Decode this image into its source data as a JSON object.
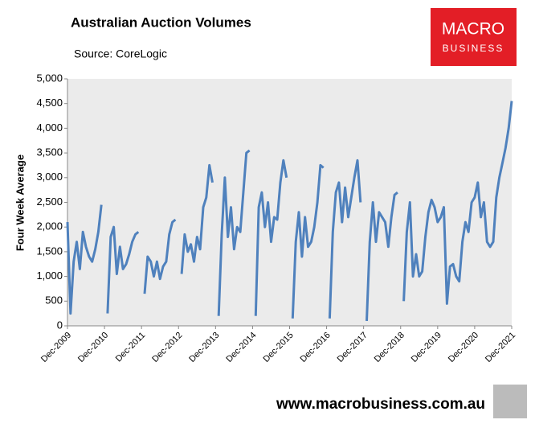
{
  "chart_data": {
    "type": "line",
    "title": "Australian Auction Volumes",
    "subtitle": "Source: CoreLogic",
    "y_label": "Four Week Average",
    "categories": [
      "Dec-2009",
      null,
      null,
      null,
      null,
      null,
      null,
      null,
      null,
      null,
      null,
      null,
      "Dec-2010",
      null,
      null,
      null,
      null,
      null,
      null,
      null,
      null,
      null,
      null,
      null,
      "Dec-2011",
      null,
      null,
      null,
      null,
      null,
      null,
      null,
      null,
      null,
      null,
      null,
      "Dec-2012",
      null,
      null,
      null,
      null,
      null,
      null,
      null,
      null,
      null,
      null,
      null,
      "Dec-2013",
      null,
      null,
      null,
      null,
      null,
      null,
      null,
      null,
      null,
      null,
      null,
      "Dec-2014",
      null,
      null,
      null,
      null,
      null,
      null,
      null,
      null,
      null,
      null,
      null,
      "Dec-2015",
      null,
      null,
      null,
      null,
      null,
      null,
      null,
      null,
      null,
      null,
      null,
      "Dec-2016",
      null,
      null,
      null,
      null,
      null,
      null,
      null,
      null,
      null,
      null,
      null,
      "Dec-2017",
      null,
      null,
      null,
      null,
      null,
      null,
      null,
      null,
      null,
      null,
      null,
      "Dec-2018",
      null,
      null,
      null,
      null,
      null,
      null,
      null,
      null,
      null,
      null,
      null,
      "Dec-2019",
      null,
      null,
      null,
      null,
      null,
      null,
      null,
      null,
      null,
      null,
      null,
      "Dec-2020",
      null,
      null,
      null,
      null,
      null,
      null,
      null,
      null,
      null,
      null,
      null,
      "Dec-2021"
    ],
    "series": [
      {
        "color": "#4f81bd",
        "values": [
          2100,
          250,
          1300,
          1700,
          1150,
          1900,
          1600,
          1400,
          1300,
          1550,
          1900,
          2450,
          null,
          250,
          1800,
          2000,
          1050,
          1600,
          1150,
          1250,
          1450,
          1700,
          1850,
          1900,
          null,
          650,
          1400,
          1300,
          1000,
          1300,
          950,
          1200,
          1300,
          1850,
          2100,
          2150,
          null,
          1050,
          1850,
          1500,
          1650,
          1300,
          1800,
          1550,
          2400,
          2600,
          3250,
          2900,
          null,
          200,
          1850,
          3000,
          1800,
          2400,
          1550,
          2000,
          1900,
          2700,
          3500,
          3550,
          null,
          200,
          2400,
          2700,
          2000,
          2500,
          1700,
          2200,
          2150,
          2900,
          3350,
          3000,
          null,
          150,
          1700,
          2300,
          1400,
          2200,
          1600,
          1700,
          2000,
          2500,
          3250,
          3200,
          null,
          150,
          1900,
          2700,
          2900,
          2100,
          2800,
          2200,
          2600,
          3000,
          3350,
          2500,
          null,
          100,
          1700,
          2500,
          1700,
          2300,
          2200,
          2100,
          1600,
          2200,
          2650,
          2700,
          null,
          500,
          1900,
          2500,
          1000,
          1450,
          1000,
          1100,
          1800,
          2300,
          2550,
          2400,
          2100,
          2200,
          2400,
          450,
          1200,
          1250,
          1000,
          900,
          1700,
          2100,
          1900,
          2500,
          2600,
          2900,
          2200,
          2500,
          1700,
          1600,
          1700,
          2600,
          3000,
          3300,
          3600,
          4000,
          4550
        ]
      }
    ],
    "ylim": [
      0,
      5000
    ],
    "yticks": [
      0,
      {
        "value": 500,
        "label": "500"
      },
      {
        "value": 1000,
        "label": "1,000"
      },
      {
        "value": 1500,
        "label": "1,500"
      },
      {
        "value": 2000,
        "label": "2,000"
      },
      {
        "value": 2500,
        "label": "2,500"
      },
      {
        "value": 3000,
        "label": "3,000"
      },
      {
        "value": 3500,
        "label": "3,500"
      },
      {
        "value": 4000,
        "label": "4,000"
      },
      {
        "value": 4500,
        "label": "4,500"
      },
      {
        "value": 5000,
        "label": "5,000"
      }
    ],
    "grid": false
  },
  "logo": {
    "line1": "MACRO",
    "line2": "BUSINESS"
  },
  "footer": "www.macrobusiness.com.au"
}
